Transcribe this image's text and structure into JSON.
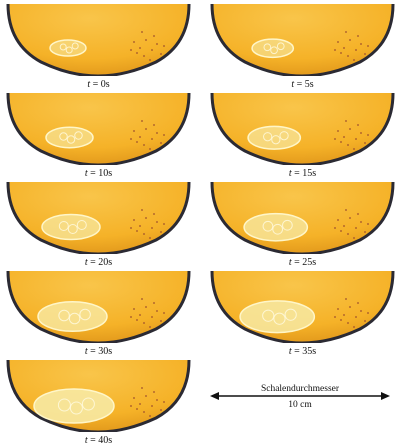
{
  "frames": [
    {
      "label": "t = 0s",
      "t_var": "t",
      "value": "0s",
      "growth": 0
    },
    {
      "label": "t = 5s",
      "t_var": "t",
      "value": "5s",
      "growth": 0.12
    },
    {
      "label": "t = 10s",
      "t_var": "t",
      "value": "10s",
      "growth": 0.25
    },
    {
      "label": "t = 15s",
      "t_var": "t",
      "value": "15s",
      "growth": 0.37
    },
    {
      "label": "t = 20s",
      "t_var": "t",
      "value": "20s",
      "growth": 0.5
    },
    {
      "label": "t = 25s",
      "t_var": "t",
      "value": "25s",
      "growth": 0.62
    },
    {
      "label": "t = 30s",
      "t_var": "t",
      "value": "30s",
      "growth": 0.75
    },
    {
      "label": "t = 35s",
      "t_var": "t",
      "value": "35s",
      "growth": 0.87
    },
    {
      "label": "t = 40s",
      "t_var": "t",
      "value": "40s",
      "growth": 1
    }
  ],
  "scale_bar": {
    "title": "Schalendurchmesser",
    "length": "10 cm"
  },
  "colors": {
    "dish_fill": "#f5b228",
    "dish_rim": "#2b2a33",
    "colony": "#f7e9a3",
    "colony_edge": "#fff6c8",
    "dots": "#a0522d"
  }
}
